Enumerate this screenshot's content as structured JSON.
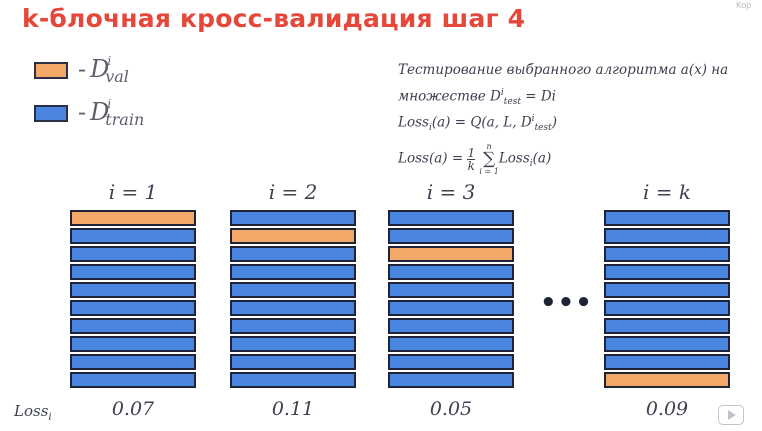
{
  "title": "k-блочная кросс-валидация шаг 4",
  "corner_text": "Кор",
  "colors": {
    "val": "#f1a868",
    "train": "#4a86e0",
    "title": "#e5473a",
    "border": "#1f2336"
  },
  "legend": {
    "val": {
      "dash": "-",
      "symbol": "D",
      "sup": "i",
      "sub": "val"
    },
    "train": {
      "dash": "-",
      "symbol": "D",
      "sup": "i",
      "sub": "train"
    }
  },
  "formulas": {
    "line1": "Тестирование выбранного алгоритма a(x) на",
    "line2_prefix": "множестве D",
    "line2_sub": "test",
    "line2_sup": "i",
    "line2_suffix": " = Di",
    "line3_prefix": "Loss",
    "line3_sub": "i",
    "line3_middle": "(a) = Q(a, L, D",
    "line3_sub2": "test",
    "line3_sup2": "i",
    "line3_suffix": ")",
    "line4_prefix": "Loss(a) = ",
    "line4_frac_num": "1",
    "line4_frac_den": "k",
    "line4_sum_top": "n",
    "line4_sum_bottom": "i = 1",
    "line4_body": "Loss",
    "line4_body_sub": "i",
    "line4_body_suffix": "(a)"
  },
  "folds": [
    {
      "label": "i = 1",
      "loss": "0.07",
      "val_index": 0
    },
    {
      "label": "i = 2",
      "loss": "0.11",
      "val_index": 1
    },
    {
      "label": "i = 3",
      "loss": "0.05",
      "val_index": 2
    },
    {
      "label": "i = k",
      "loss": "0.09",
      "val_index": 9
    }
  ],
  "blocks_per_fold": 10,
  "ellipsis": "•••",
  "loss_label": "Loss",
  "loss_label_sub": "i"
}
